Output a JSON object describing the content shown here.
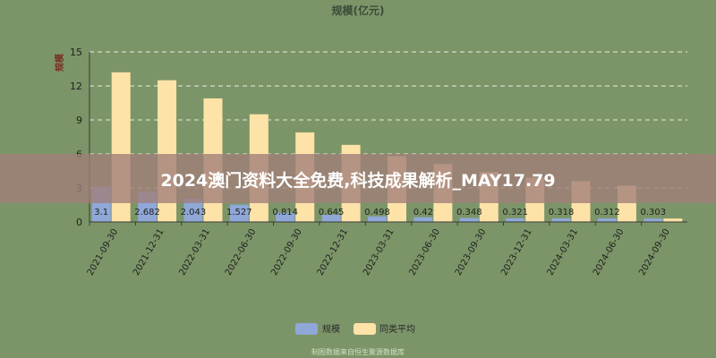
{
  "chart_data": {
    "type": "bar",
    "title": "规模(亿元)",
    "ylabel": "规模",
    "ylim": [
      0,
      15
    ],
    "yticks": [
      0,
      3,
      6,
      9,
      12,
      15
    ],
    "grid": true,
    "legend_position": "bottom",
    "categories": [
      "2021-09-30",
      "2021-12-31",
      "2022-03-31",
      "2022-06-30",
      "2022-09-30",
      "2022-12-31",
      "2023-03-31",
      "2023-06-30",
      "2023-09-30",
      "2023-12-31",
      "2024-03-31",
      "2024-06-30",
      "2024-09-30"
    ],
    "series": [
      {
        "name": "规模",
        "color": "#8fa8d8",
        "values": [
          3.1,
          2.682,
          2.043,
          1.527,
          0.814,
          0.645,
          0.498,
          0.42,
          0.348,
          0.321,
          0.318,
          0.312,
          0.303
        ],
        "labels": [
          "3.1",
          "2.682",
          "2.043",
          "1.527",
          "0.814",
          "0.645",
          "0.498",
          "0.42",
          "0.348",
          "0.321",
          "0.318",
          "0.312",
          "0.303"
        ]
      },
      {
        "name": "同类平均",
        "color": "#fde3a7",
        "values": [
          13.2,
          12.5,
          10.9,
          9.5,
          7.9,
          6.8,
          5.8,
          5.1,
          4.4,
          3.9,
          3.6,
          3.2,
          0.3
        ]
      }
    ]
  },
  "banner": {
    "text": "2024澳门资料大全免费,科技成果解析_MAY17.79"
  },
  "footer": {
    "text": "制图数据来自恒生聚源数据库"
  }
}
